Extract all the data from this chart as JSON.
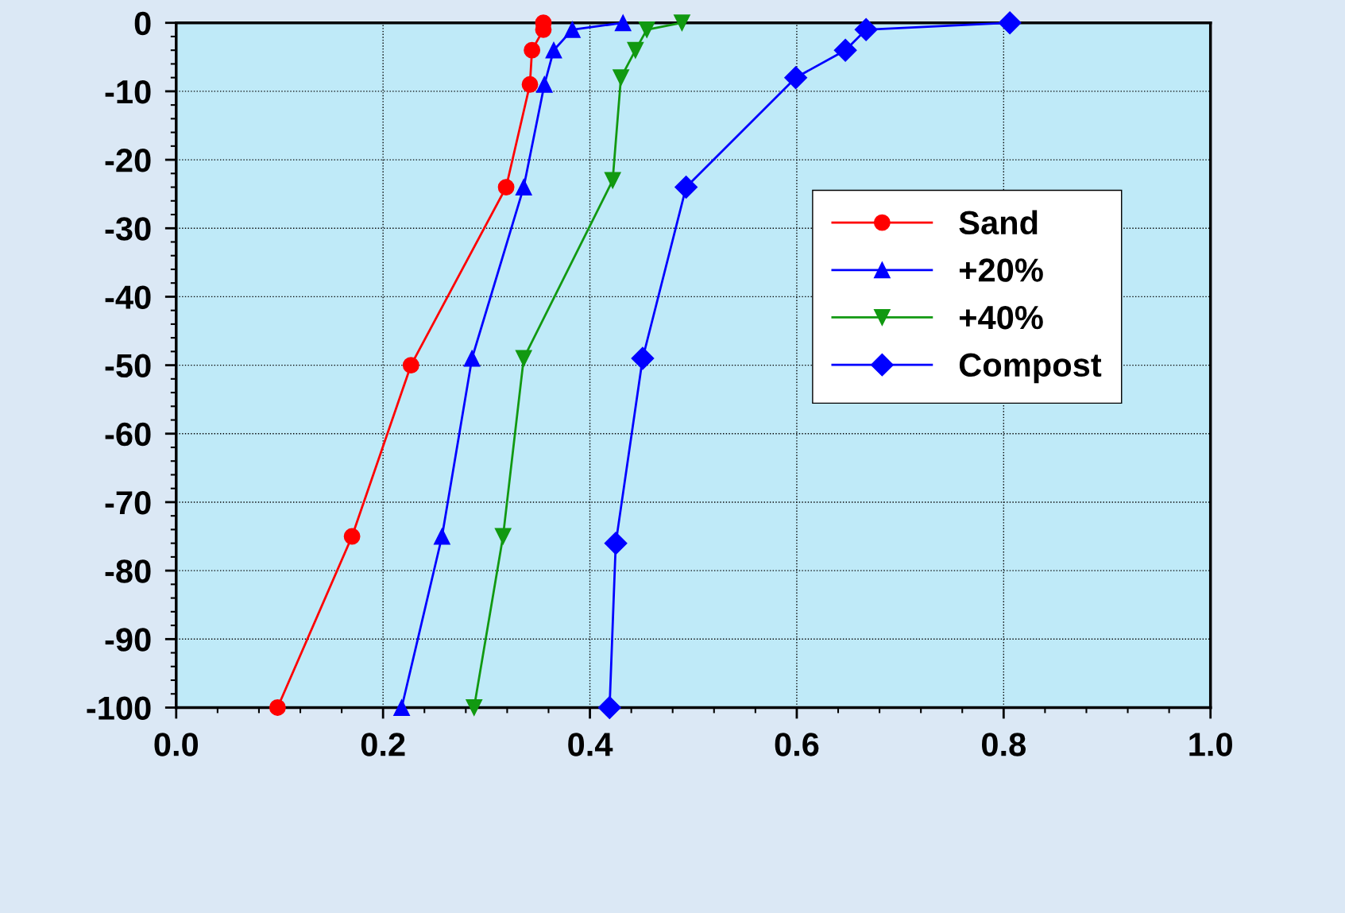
{
  "chart_data": {
    "type": "line",
    "xlim": [
      0.0,
      1.0
    ],
    "xticks": [
      {
        "value": 0.0,
        "label": "0.0"
      },
      0.2,
      0.4,
      0.6,
      0.8,
      {
        "value": 1.0,
        "label": "1.0"
      }
    ],
    "ylim": [
      -100,
      0
    ],
    "yticks": [
      -100,
      -90,
      -80,
      -70,
      -60,
      -50,
      -40,
      -30,
      -20,
      -10,
      0
    ],
    "grid": true,
    "legend": "right",
    "series": [
      {
        "name": "Sand",
        "color": "#ff0000",
        "marker": "circle",
        "x": [
          0.355,
          0.355,
          0.344,
          0.342,
          0.319,
          0.227,
          0.17,
          0.098
        ],
        "values": [
          0,
          -1,
          -4,
          -9,
          -24,
          -50,
          -75,
          -100
        ]
      },
      {
        "name": "+20%",
        "color": "#0000ff",
        "marker": "triangle",
        "x": [
          0.432,
          0.383,
          0.365,
          0.356,
          0.336,
          0.286,
          0.257,
          0.218
        ],
        "values": [
          0,
          -1,
          -4,
          -9,
          -24,
          -49,
          -75,
          -100
        ]
      },
      {
        "name": "+40%",
        "color": "#119911",
        "marker": "triangle_down",
        "x": [
          0.489,
          0.455,
          0.444,
          0.43,
          0.422,
          0.336,
          0.316,
          0.288
        ],
        "values": [
          0,
          -1,
          -4,
          -8,
          -23,
          -49,
          -75,
          -100
        ]
      },
      {
        "name": "Compost",
        "color": "#0000ff",
        "marker": "diamond",
        "x": [
          0.806,
          0.667,
          0.647,
          0.599,
          0.493,
          0.451,
          0.425,
          0.419
        ],
        "values": [
          0,
          -1,
          -4,
          -8,
          -24,
          -49,
          -76,
          -100
        ]
      }
    ]
  }
}
